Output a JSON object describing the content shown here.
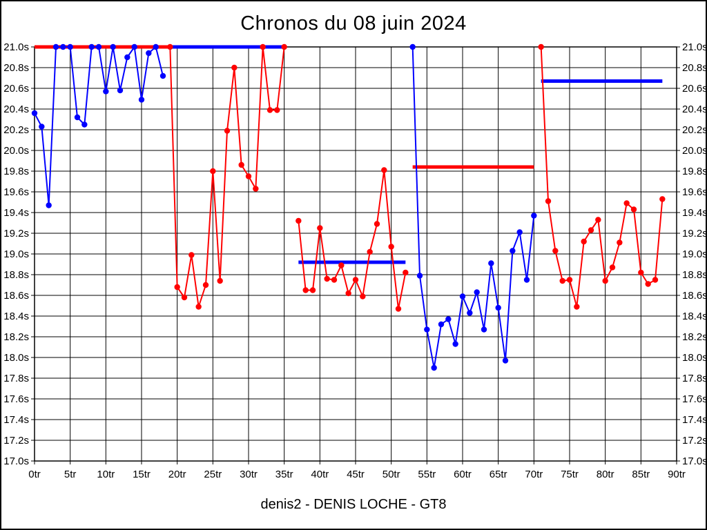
{
  "chart_data": {
    "type": "line",
    "title": "Chronos du 08 juin 2024",
    "subtitle": "denis2 - DENIS LOCHE - GT8",
    "x_unit": "tr",
    "y_unit": "s",
    "xlim": [
      0,
      90
    ],
    "xtick_step": 5,
    "ylim": [
      17.0,
      21.0
    ],
    "ytick_step": 0.2,
    "clip_max": 21.0,
    "grid": "on",
    "legend": "none",
    "colors": {
      "blue": "#0000ff",
      "red": "#ff0000",
      "axis": "#000000"
    },
    "stints": [
      {
        "name": "stint-1",
        "color": "blue",
        "points": [
          [
            0,
            20.36
          ],
          [
            1,
            20.23
          ],
          [
            2,
            19.47
          ],
          [
            3,
            21.0
          ],
          [
            4,
            21.0
          ],
          [
            5,
            21.0
          ],
          [
            6,
            20.32
          ],
          [
            7,
            20.25
          ],
          [
            8,
            21.0
          ],
          [
            9,
            21.0
          ],
          [
            10,
            20.57
          ],
          [
            11,
            21.0
          ],
          [
            12,
            20.58
          ],
          [
            13,
            20.9
          ],
          [
            14,
            21.0
          ],
          [
            15,
            20.49
          ],
          [
            16,
            20.94
          ],
          [
            17,
            21.0
          ],
          [
            18,
            20.72
          ]
        ]
      },
      {
        "name": "stint-2",
        "color": "red",
        "points": [
          [
            19,
            21.0
          ],
          [
            20,
            18.68
          ],
          [
            21,
            18.58
          ],
          [
            22,
            18.99
          ],
          [
            23,
            18.49
          ],
          [
            24,
            18.7
          ],
          [
            25,
            19.8
          ],
          [
            26,
            18.74
          ],
          [
            27,
            20.19
          ],
          [
            28,
            20.8
          ],
          [
            29,
            19.86
          ],
          [
            30,
            19.75
          ],
          [
            31,
            19.63
          ],
          [
            32,
            21.0
          ],
          [
            33,
            20.39
          ],
          [
            34,
            20.39
          ],
          [
            35,
            21.0
          ]
        ]
      },
      {
        "name": "stint-3",
        "color": "red",
        "points": [
          [
            37,
            19.32
          ],
          [
            38,
            18.65
          ],
          [
            39,
            18.65
          ],
          [
            40,
            19.25
          ],
          [
            41,
            18.76
          ],
          [
            42,
            18.75
          ],
          [
            43,
            18.89
          ],
          [
            44,
            18.62
          ],
          [
            45,
            18.75
          ],
          [
            46,
            18.59
          ],
          [
            47,
            19.02
          ],
          [
            48,
            19.29
          ],
          [
            49,
            19.81
          ],
          [
            50,
            19.07
          ],
          [
            51,
            18.47
          ],
          [
            52,
            18.82
          ]
        ]
      },
      {
        "name": "stint-4",
        "color": "blue",
        "points": [
          [
            53,
            21.0
          ],
          [
            54,
            18.79
          ],
          [
            55,
            18.27
          ],
          [
            56,
            17.9
          ],
          [
            57,
            18.32
          ],
          [
            58,
            18.37
          ],
          [
            59,
            18.13
          ],
          [
            60,
            18.59
          ],
          [
            61,
            18.43
          ],
          [
            62,
            18.63
          ],
          [
            63,
            18.27
          ],
          [
            64,
            18.91
          ],
          [
            65,
            18.48
          ],
          [
            66,
            17.97
          ],
          [
            67,
            19.03
          ],
          [
            68,
            19.21
          ],
          [
            69,
            18.75
          ],
          [
            70,
            19.37
          ]
        ]
      },
      {
        "name": "stint-5",
        "color": "red",
        "points": [
          [
            71,
            21.0
          ],
          [
            72,
            19.51
          ],
          [
            73,
            19.03
          ],
          [
            74,
            18.74
          ],
          [
            75,
            18.75
          ],
          [
            76,
            18.49
          ],
          [
            77,
            19.12
          ],
          [
            78,
            19.23
          ],
          [
            79,
            19.33
          ],
          [
            80,
            18.74
          ],
          [
            81,
            18.87
          ],
          [
            82,
            19.11
          ],
          [
            83,
            19.49
          ],
          [
            84,
            19.43
          ],
          [
            85,
            18.82
          ],
          [
            86,
            18.71
          ],
          [
            87,
            18.75
          ],
          [
            88,
            19.53
          ]
        ]
      }
    ],
    "average_lines": [
      {
        "color": "red",
        "value": 21.0,
        "from": 0,
        "to": 19
      },
      {
        "color": "blue",
        "value": 21.0,
        "from": 19,
        "to": 35
      },
      {
        "color": "blue",
        "value": 18.92,
        "from": 37,
        "to": 52
      },
      {
        "color": "red",
        "value": 19.84,
        "from": 53,
        "to": 70
      },
      {
        "color": "blue",
        "value": 20.67,
        "from": 71,
        "to": 88
      }
    ]
  }
}
